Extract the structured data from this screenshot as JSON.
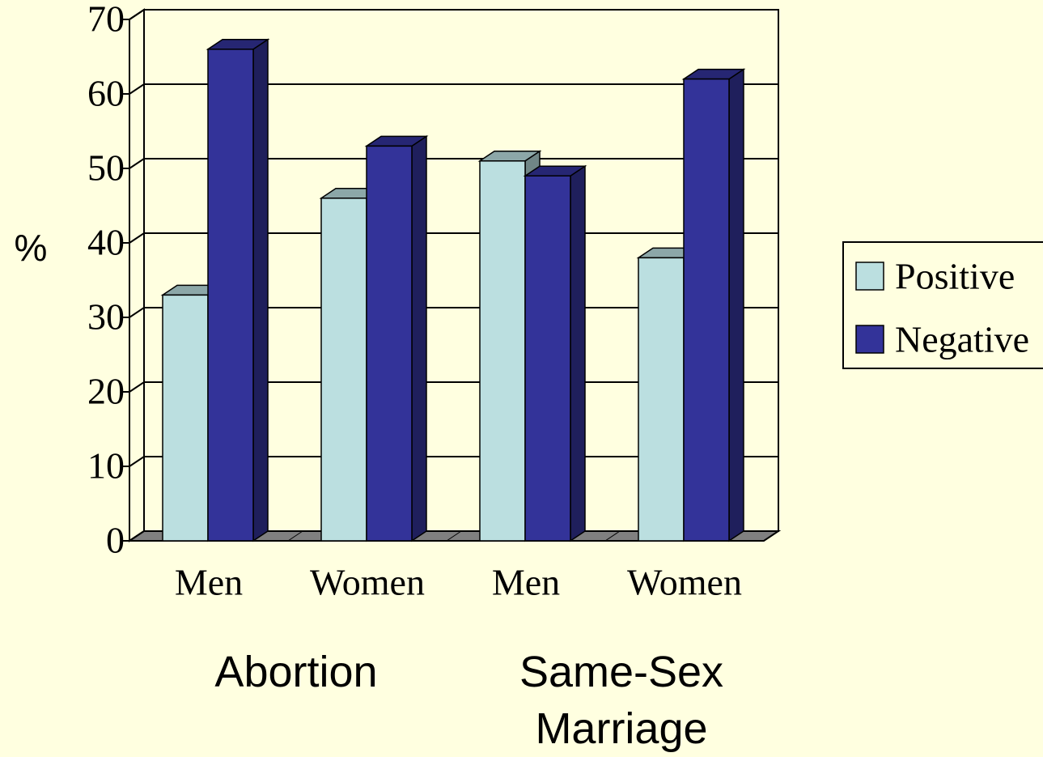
{
  "chart_data": {
    "type": "bar3d",
    "y_axis_label": "%",
    "categories": [
      "Men",
      "Women",
      "Men",
      "Women"
    ],
    "groups": [
      "Abortion",
      "Same-Sex Marriage"
    ],
    "series": [
      {
        "name": "Positive",
        "color": "#bbdfe0",
        "values": [
          33,
          46,
          51,
          38
        ]
      },
      {
        "name": "Negative",
        "color": "#333399",
        "values": [
          66,
          53,
          49,
          62
        ]
      }
    ],
    "ylim": [
      0,
      70
    ],
    "yticks": [
      0,
      10,
      20,
      30,
      40,
      50,
      60,
      70
    ],
    "grid": true,
    "legend": "right"
  }
}
